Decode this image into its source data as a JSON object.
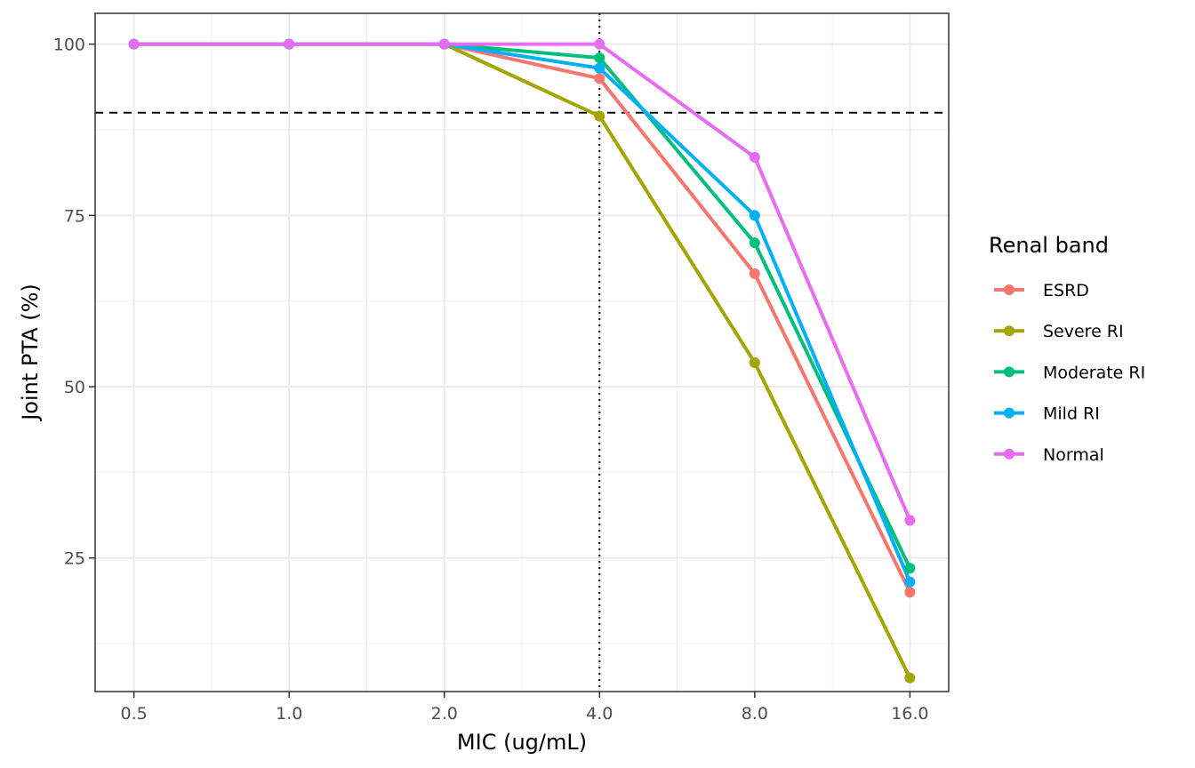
{
  "chart_data": {
    "type": "line",
    "x_scale": "log2",
    "categories": [
      "0.5",
      "1.0",
      "2.0",
      "4.0",
      "8.0",
      "16.0"
    ],
    "x": [
      0.5,
      1,
      2,
      4,
      8,
      16
    ],
    "xlabel": "MIC (ug/mL)",
    "ylabel": "Joint PTA (%)",
    "yticks": [
      25,
      50,
      75,
      100
    ],
    "ylim": [
      5.5,
      104.5
    ],
    "grid": true,
    "legend": {
      "title": "Renal band",
      "position": "right"
    },
    "reference_lines": {
      "horizontal_dashed_y": 90,
      "vertical_dotted_x": 4
    },
    "series": [
      {
        "name": "ESRD",
        "color": "#F8766D",
        "values": [
          100,
          100,
          100,
          95.0,
          66.5,
          20.0
        ]
      },
      {
        "name": "Severe RI",
        "color": "#A3A500",
        "values": [
          100,
          100,
          100,
          89.5,
          53.5,
          7.5
        ]
      },
      {
        "name": "Moderate RI",
        "color": "#00BF7D",
        "values": [
          100,
          100,
          100,
          98.0,
          71.0,
          23.5
        ]
      },
      {
        "name": "Mild RI",
        "color": "#00B0F6",
        "values": [
          100,
          100,
          100,
          96.5,
          75.0,
          21.5
        ]
      },
      {
        "name": "Normal",
        "color": "#E76BF3",
        "values": [
          100,
          100,
          100,
          100.0,
          83.5,
          30.5
        ]
      }
    ]
  }
}
